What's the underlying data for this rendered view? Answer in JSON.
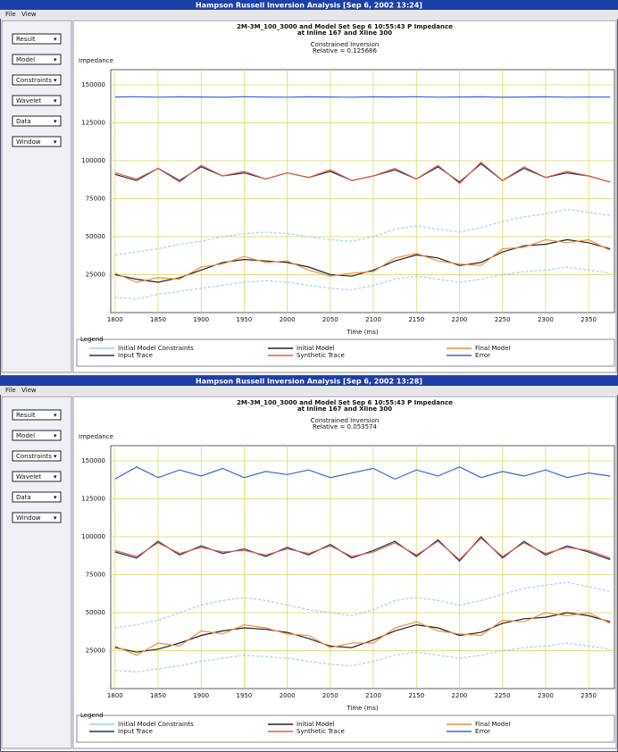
{
  "windows": [
    {
      "title": "Hampson Russell Inversion Analysis [Sep 6, 2002 13:24]",
      "menu": [
        "File",
        "View"
      ],
      "buttons": [
        "Result",
        "Model",
        "Constraints",
        "Wavelet",
        "Data",
        "Window"
      ]
    },
    {
      "title": "Hampson Russell Inversion Analysis [Sep 6, 2002 13:28]",
      "menu": [
        "File",
        "View"
      ],
      "buttons": [
        "Result",
        "Model",
        "Constraints",
        "Wavelet",
        "Data",
        "Window"
      ]
    }
  ],
  "chart_data": [
    {
      "type": "line",
      "title": [
        "2M-3M_100_3000 and Model Set Sep 6 10:55:43 P Impedance",
        "at Inline 167 and Xline 300"
      ],
      "subtitle": "Constrained Inversion",
      "annotation": "Relative = 0.125686",
      "ylabel": "Impedance",
      "xlabel": "Time (ms)",
      "legend_title": "Legend",
      "grid": true,
      "x": [
        1800,
        1825,
        1850,
        1875,
        1900,
        1925,
        1950,
        1975,
        2000,
        2025,
        2050,
        2075,
        2100,
        2125,
        2150,
        2175,
        2200,
        2225,
        2250,
        2275,
        2300,
        2325,
        2350,
        2375
      ],
      "xlim": [
        1795,
        2380
      ],
      "xticks": [
        1800,
        1850,
        1900,
        1950,
        2000,
        2050,
        2100,
        2150,
        2200,
        2250,
        2300,
        2350
      ],
      "ylim": [
        0,
        160000
      ],
      "yticks": [
        25000,
        50000,
        75000,
        100000,
        125000,
        150000
      ],
      "series": [
        {
          "name": "Initial Model Constraints",
          "color": "#9ad6ea",
          "values": [
            38000,
            40000,
            42000,
            45000,
            47000,
            50000,
            52000,
            53000,
            52000,
            50000,
            48000,
            47000,
            50000,
            55000,
            57000,
            55000,
            53000,
            56000,
            60000,
            63000,
            65000,
            68000,
            66000,
            64000
          ],
          "lower": [
            10000,
            9000,
            12000,
            14000,
            16000,
            18000,
            20000,
            21000,
            20000,
            18000,
            16000,
            15000,
            18000,
            22000,
            24000,
            22000,
            20000,
            22000,
            25000,
            27000,
            28000,
            30000,
            28000,
            26000
          ]
        },
        {
          "name": "Input Trace",
          "color": "#26306a",
          "values": [
            91000,
            87000,
            95000,
            87000,
            96000,
            90000,
            92000,
            88000,
            92000,
            89000,
            93000,
            87000,
            90000,
            94000,
            88000,
            96000,
            86000,
            98000,
            87000,
            95000,
            89000,
            92000,
            90000,
            86000
          ]
        },
        {
          "name": "Initial Model",
          "color": "#222222",
          "values": [
            25000,
            22000,
            20000,
            23000,
            28000,
            33000,
            35000,
            34000,
            33000,
            30000,
            25000,
            24000,
            28000,
            34000,
            38000,
            36000,
            31000,
            33000,
            40000,
            44000,
            45000,
            48000,
            46000,
            42000
          ]
        },
        {
          "name": "Synthetic Trace",
          "color": "#e0603c",
          "values": [
            92000,
            88000,
            95000,
            86000,
            97000,
            90000,
            93000,
            88000,
            92000,
            89000,
            94000,
            87000,
            90000,
            95000,
            88000,
            97000,
            85000,
            99000,
            87000,
            96000,
            89000,
            93000,
            90000,
            86000
          ]
        },
        {
          "name": "Final Model",
          "color": "#f09040",
          "values": [
            26000,
            20000,
            23000,
            22000,
            30000,
            32000,
            37000,
            33000,
            34000,
            28000,
            24000,
            26000,
            27000,
            36000,
            39000,
            34000,
            32000,
            31000,
            42000,
            43000,
            48000,
            46000,
            48000,
            41000
          ]
        },
        {
          "name": "Error",
          "color": "#3a68d8",
          "values": [
            142000,
            142200,
            141900,
            142100,
            142000,
            141800,
            142200,
            142000,
            141900,
            142100,
            142000,
            141900,
            142100,
            142000,
            142200,
            141900,
            142000,
            142100,
            141800,
            142000,
            142100,
            141900,
            142000,
            142000
          ]
        }
      ]
    },
    {
      "type": "line",
      "title": [
        "2M-3M_100_3000 and Model Set Sep 6 10:55:43 P Impedance",
        "at Inline 167 and Xline 300"
      ],
      "subtitle": "Constrained Inversion",
      "annotation": "Relative = 0.053574",
      "ylabel": "Impedance",
      "xlabel": "Time (ms)",
      "legend_title": "Legend",
      "grid": true,
      "x": [
        1800,
        1825,
        1850,
        1875,
        1900,
        1925,
        1950,
        1975,
        2000,
        2025,
        2050,
        2075,
        2100,
        2125,
        2150,
        2175,
        2200,
        2225,
        2250,
        2275,
        2300,
        2325,
        2350,
        2375
      ],
      "xlim": [
        1795,
        2380
      ],
      "xticks": [
        1800,
        1850,
        1900,
        1950,
        2000,
        2050,
        2100,
        2150,
        2200,
        2250,
        2300,
        2350
      ],
      "ylim": [
        0,
        160000
      ],
      "yticks": [
        25000,
        50000,
        75000,
        100000,
        125000,
        150000
      ],
      "series": [
        {
          "name": "Initial Model Constraints",
          "color": "#9ad6ea",
          "values": [
            40000,
            42000,
            45000,
            50000,
            55000,
            58000,
            60000,
            58000,
            55000,
            52000,
            50000,
            48000,
            52000,
            58000,
            60000,
            58000,
            55000,
            58000,
            62000,
            66000,
            68000,
            70000,
            67000,
            64000
          ],
          "lower": [
            12000,
            11000,
            13000,
            15000,
            18000,
            20000,
            22000,
            21000,
            20000,
            18000,
            16000,
            15000,
            18000,
            22000,
            24000,
            22000,
            20000,
            22000,
            25000,
            27000,
            28000,
            30000,
            28000,
            26000
          ]
        },
        {
          "name": "Input Trace",
          "color": "#26306a",
          "values": [
            90000,
            86000,
            97000,
            88000,
            94000,
            89000,
            92000,
            87000,
            93000,
            88000,
            95000,
            86000,
            91000,
            97000,
            87000,
            98000,
            84000,
            100000,
            86000,
            97000,
            88000,
            94000,
            90000,
            85000
          ]
        },
        {
          "name": "Initial Model",
          "color": "#222222",
          "values": [
            27000,
            24000,
            26000,
            30000,
            35000,
            38000,
            40000,
            39000,
            37000,
            33000,
            28000,
            27000,
            32000,
            38000,
            42000,
            40000,
            35000,
            37000,
            43000,
            46000,
            47000,
            50000,
            48000,
            44000
          ]
        },
        {
          "name": "Synthetic Trace",
          "color": "#e0603c",
          "values": [
            91000,
            87000,
            96000,
            89000,
            93000,
            90000,
            91000,
            88000,
            92000,
            89000,
            94000,
            87000,
            90000,
            96000,
            88000,
            97000,
            85000,
            99000,
            87000,
            96000,
            89000,
            93000,
            91000,
            86000
          ]
        },
        {
          "name": "Final Model",
          "color": "#f09040",
          "values": [
            28000,
            22000,
            30000,
            28000,
            38000,
            36000,
            42000,
            40000,
            36000,
            35000,
            27000,
            30000,
            30000,
            40000,
            44000,
            38000,
            36000,
            35000,
            45000,
            44000,
            50000,
            48000,
            50000,
            43000
          ]
        },
        {
          "name": "Error",
          "color": "#3a68d8",
          "values": [
            138000,
            146000,
            139000,
            144000,
            140000,
            145000,
            139000,
            143000,
            141000,
            144000,
            139000,
            142000,
            145000,
            138000,
            144000,
            140000,
            146000,
            139000,
            143000,
            140000,
            144000,
            139000,
            142000,
            140000
          ]
        }
      ]
    }
  ]
}
